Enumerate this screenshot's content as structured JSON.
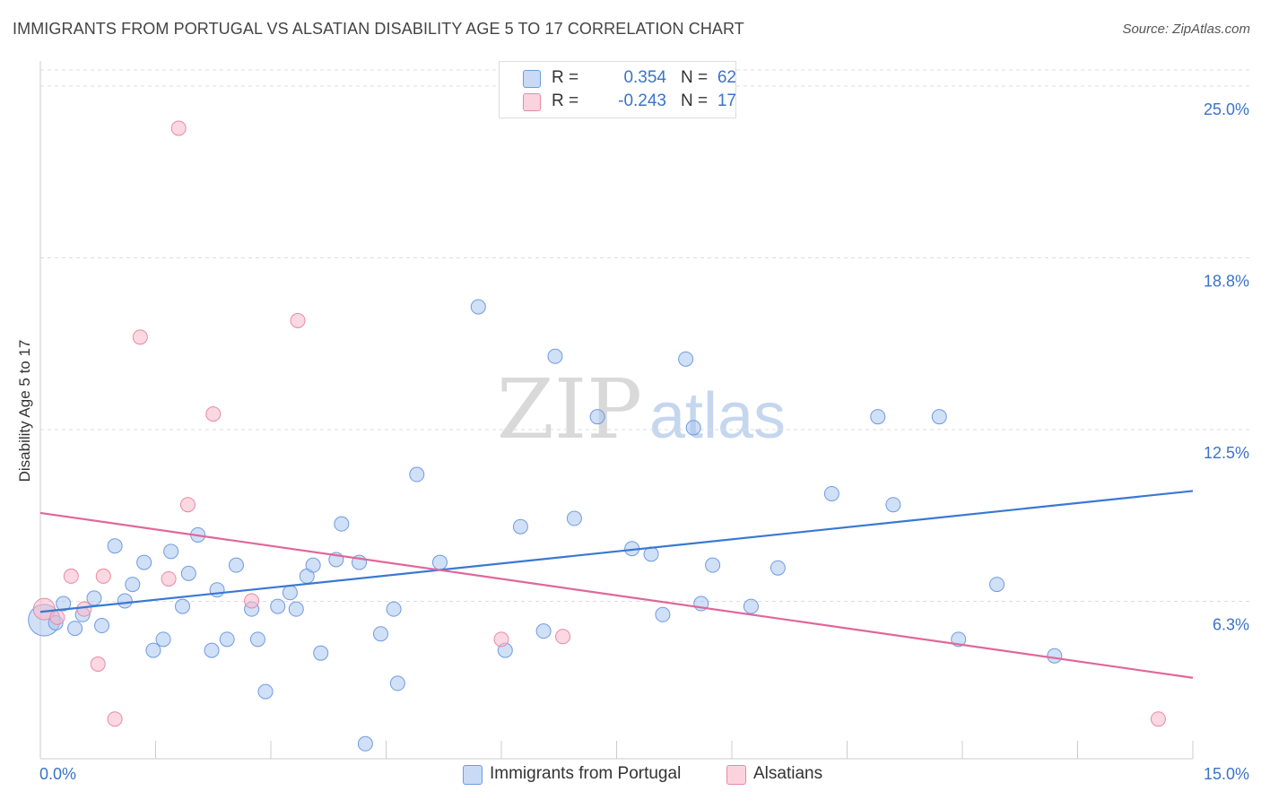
{
  "title": "IMMIGRANTS FROM PORTUGAL VS ALSATIAN DISABILITY AGE 5 TO 17 CORRELATION CHART",
  "source": "Source: ZipAtlas.com",
  "watermark": {
    "zip": "ZIP",
    "atlas": "atlas"
  },
  "legend": {
    "rows": [
      {
        "r_label": "R =",
        "r_value": "0.354",
        "n_label": "N =",
        "n_value": "62",
        "color": "#a9c6f0",
        "stroke": "#6f9be0"
      },
      {
        "r_label": "R =",
        "r_value": "-0.243",
        "n_label": "N =",
        "n_value": "17",
        "color": "#f7b8cb",
        "stroke": "#e889a6"
      }
    ]
  },
  "bottom_legend": [
    {
      "label": "Immigrants from Portugal",
      "color": "#a9c6f0",
      "stroke": "#6f9be0"
    },
    {
      "label": "Alsatians",
      "color": "#f7b8cb",
      "stroke": "#e889a6"
    }
  ],
  "chart_data": {
    "type": "scatter",
    "title": "IMMIGRANTS FROM PORTUGAL VS ALSATIAN DISABILITY AGE 5 TO 17 CORRELATION CHART",
    "xlabel": "",
    "ylabel": "Disability Age 5 to 17",
    "xlim": [
      0,
      15
    ],
    "ylim": [
      0,
      25
    ],
    "x_tick_labels": [
      "0.0%",
      "15.0%"
    ],
    "y_ticks": [
      {
        "value": 25.0,
        "label": "25.0%"
      },
      {
        "value": 18.75,
        "label": "18.8%"
      },
      {
        "value": 12.5,
        "label": "12.5%"
      },
      {
        "value": 6.25,
        "label": "6.3%"
      }
    ],
    "grid": "horizontal-dashed",
    "legend_position": "top-center",
    "colors": {
      "blue_line": "#3a78d4",
      "pink_line": "#e0679a",
      "axis_label": "#3b73c8"
    },
    "series": [
      {
        "name": "Immigrants from Portugal",
        "color": "#a9c6f0",
        "stroke": "#6f9be0",
        "trend": {
          "x": [
            0,
            15
          ],
          "y": [
            5.9,
            10.3
          ]
        },
        "points": [
          [
            0.05,
            5.6,
            2.2
          ],
          [
            0.2,
            5.5,
            1
          ],
          [
            0.3,
            6.2,
            1
          ],
          [
            0.45,
            5.3,
            1
          ],
          [
            0.55,
            5.8,
            1
          ],
          [
            0.7,
            6.4,
            1
          ],
          [
            0.8,
            5.4,
            1
          ],
          [
            0.97,
            8.3,
            1
          ],
          [
            1.1,
            6.3,
            1
          ],
          [
            1.2,
            6.9,
            1
          ],
          [
            1.35,
            7.7,
            1
          ],
          [
            1.47,
            4.5,
            1
          ],
          [
            1.6,
            4.9,
            1
          ],
          [
            1.7,
            8.1,
            1
          ],
          [
            1.85,
            6.1,
            1
          ],
          [
            1.93,
            7.3,
            1
          ],
          [
            2.05,
            8.7,
            1
          ],
          [
            2.23,
            4.5,
            1
          ],
          [
            2.3,
            6.7,
            1
          ],
          [
            2.43,
            4.9,
            1
          ],
          [
            2.55,
            7.6,
            1
          ],
          [
            2.75,
            6.0,
            1
          ],
          [
            2.83,
            4.9,
            1
          ],
          [
            2.93,
            3.0,
            1
          ],
          [
            3.09,
            6.1,
            1
          ],
          [
            3.25,
            6.6,
            1
          ],
          [
            3.33,
            6.0,
            1
          ],
          [
            3.47,
            7.2,
            1
          ],
          [
            3.55,
            7.6,
            1
          ],
          [
            3.65,
            4.4,
            1
          ],
          [
            3.85,
            7.8,
            1
          ],
          [
            3.92,
            9.1,
            1
          ],
          [
            4.15,
            7.7,
            1
          ],
          [
            4.23,
            1.1,
            1
          ],
          [
            4.43,
            5.1,
            1
          ],
          [
            4.6,
            6.0,
            1
          ],
          [
            4.65,
            3.3,
            1
          ],
          [
            4.9,
            10.9,
            1
          ],
          [
            5.2,
            7.7,
            1
          ],
          [
            5.7,
            17.0,
            1
          ],
          [
            6.05,
            4.5,
            1
          ],
          [
            6.25,
            9.0,
            1
          ],
          [
            6.55,
            5.2,
            1
          ],
          [
            6.7,
            15.2,
            1
          ],
          [
            6.95,
            9.3,
            1
          ],
          [
            7.25,
            13.0,
            1
          ],
          [
            7.7,
            8.2,
            1
          ],
          [
            7.95,
            8.0,
            1
          ],
          [
            8.1,
            5.8,
            1
          ],
          [
            8.4,
            15.1,
            1
          ],
          [
            8.5,
            12.6,
            1
          ],
          [
            8.6,
            6.2,
            1
          ],
          [
            8.75,
            7.6,
            1
          ],
          [
            9.25,
            6.1,
            1
          ],
          [
            9.6,
            7.5,
            1
          ],
          [
            10.3,
            10.2,
            1
          ],
          [
            10.9,
            13.0,
            1
          ],
          [
            11.1,
            9.8,
            1
          ],
          [
            11.7,
            13.0,
            1
          ],
          [
            11.95,
            4.9,
            1
          ],
          [
            12.45,
            6.9,
            1
          ],
          [
            13.2,
            4.3,
            1
          ]
        ]
      },
      {
        "name": "Alsatians",
        "color": "#f7b8cb",
        "stroke": "#e889a6",
        "trend": {
          "x": [
            0,
            15
          ],
          "y": [
            9.5,
            3.5
          ]
        },
        "points": [
          [
            0.05,
            6.0,
            1.5
          ],
          [
            0.22,
            5.7,
            1
          ],
          [
            0.4,
            7.2,
            1
          ],
          [
            0.57,
            6.0,
            1
          ],
          [
            0.75,
            4.0,
            1
          ],
          [
            0.82,
            7.2,
            1
          ],
          [
            0.97,
            2.0,
            1
          ],
          [
            1.3,
            15.9,
            1
          ],
          [
            1.67,
            7.1,
            1
          ],
          [
            1.8,
            23.5,
            1
          ],
          [
            1.92,
            9.8,
            1
          ],
          [
            2.25,
            13.1,
            1
          ],
          [
            2.75,
            6.3,
            1
          ],
          [
            3.35,
            16.5,
            1
          ],
          [
            6.0,
            4.9,
            1
          ],
          [
            6.8,
            5.0,
            1
          ],
          [
            14.55,
            2.0,
            1
          ]
        ]
      }
    ]
  }
}
